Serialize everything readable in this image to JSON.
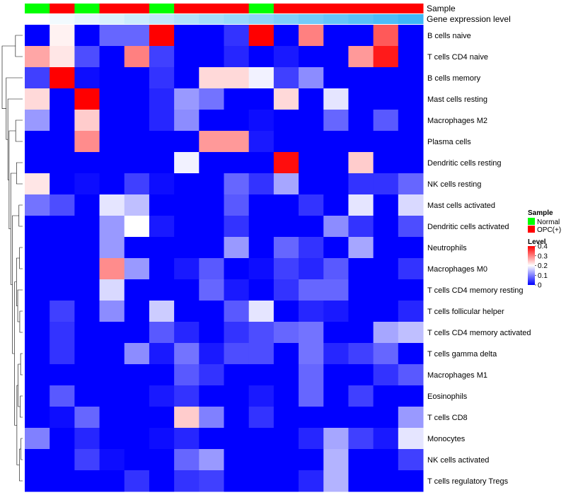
{
  "chart_data": {
    "type": "heatmap",
    "title": "",
    "annotation_labels": {
      "sample": "Sample",
      "expression": "Gene expression level"
    },
    "samples": [
      "Normal",
      "OPC(+)",
      "Normal",
      "OPC(+)",
      "OPC(+)",
      "Normal",
      "OPC(+)",
      "OPC(+)",
      "OPC(+)",
      "Normal",
      "OPC(+)",
      "OPC(+)",
      "OPC(+)",
      "OPC(+)",
      "OPC(+)",
      "OPC(+)"
    ],
    "expression_gradient": [
      0.02,
      0.04,
      0.06,
      0.08,
      0.1,
      0.12,
      0.14,
      0.16,
      0.18,
      0.2,
      0.22,
      0.24,
      0.26,
      0.28,
      0.3,
      0.32
    ],
    "rows": [
      "B cells naive",
      "T cells CD4 naive",
      "B cells memory",
      "Mast cells resting",
      "Macrophages M2",
      "Plasma cells",
      "Dendritic cells resting",
      "NK cells resting",
      "Mast cells activated",
      "Dendritic cells activated",
      "Neutrophils",
      "Macrophages M0",
      "T cells CD4 memory resting",
      "T cells follicular helper",
      "T cells CD4 memory activated",
      "T cells gamma delta",
      "Macrophages M1",
      "Eosinophils",
      "T cells CD8",
      "Monocytes",
      "NK cells activated",
      "T cells regulatory  Tregs"
    ],
    "values": [
      [
        0.0,
        0.21,
        0.0,
        0.08,
        0.08,
        0.4,
        0.0,
        0.0,
        0.04,
        0.4,
        0.0,
        0.3,
        0.0,
        0.0,
        0.33,
        0.0
      ],
      [
        0.27,
        0.22,
        0.06,
        0.0,
        0.3,
        0.05,
        0.0,
        0.0,
        0.03,
        0.0,
        0.02,
        0.0,
        0.0,
        0.28,
        0.38,
        0.0
      ],
      [
        0.05,
        0.4,
        0.01,
        0.0,
        0.0,
        0.04,
        0.0,
        0.23,
        0.23,
        0.19,
        0.05,
        0.11,
        0.0,
        0.0,
        0.0,
        0.0
      ],
      [
        0.23,
        0.0,
        0.4,
        0.0,
        0.0,
        0.03,
        0.12,
        0.09,
        0.0,
        0.0,
        0.23,
        0.0,
        0.18,
        0.0,
        0.0,
        0.0
      ],
      [
        0.12,
        0.0,
        0.24,
        0.0,
        0.0,
        0.03,
        0.11,
        0.0,
        0.0,
        0.01,
        0.0,
        0.0,
        0.08,
        0.0,
        0.07,
        0.0
      ],
      [
        0.0,
        0.0,
        0.29,
        0.0,
        0.0,
        0.0,
        0.0,
        0.28,
        0.28,
        0.02,
        0.0,
        0.0,
        0.0,
        0.0,
        0.0,
        0.0
      ],
      [
        0.0,
        0.0,
        0.0,
        0.0,
        0.0,
        0.0,
        0.19,
        0.0,
        0.0,
        0.0,
        0.39,
        0.0,
        0.0,
        0.24,
        0.0,
        0.0
      ],
      [
        0.22,
        0.0,
        0.01,
        0.0,
        0.05,
        0.01,
        0.0,
        0.0,
        0.08,
        0.04,
        0.13,
        0.0,
        0.0,
        0.04,
        0.04,
        0.08
      ],
      [
        0.09,
        0.06,
        0.0,
        0.18,
        0.15,
        0.0,
        0.0,
        0.0,
        0.07,
        0.0,
        0.0,
        0.04,
        0.0,
        0.18,
        0.0,
        0.17
      ],
      [
        0.0,
        0.0,
        0.0,
        0.12,
        0.2,
        0.02,
        0.0,
        0.0,
        0.04,
        0.0,
        0.0,
        0.0,
        0.11,
        0.04,
        0.0,
        0.06
      ],
      [
        0.0,
        0.0,
        0.0,
        0.12,
        0.0,
        0.0,
        0.0,
        0.0,
        0.12,
        0.0,
        0.08,
        0.04,
        0.0,
        0.13,
        0.0,
        0.0
      ],
      [
        0.0,
        0.0,
        0.0,
        0.29,
        0.12,
        0.0,
        0.02,
        0.07,
        0.0,
        0.01,
        0.05,
        0.03,
        0.07,
        0.0,
        0.0,
        0.04
      ],
      [
        0.0,
        0.0,
        0.0,
        0.17,
        0.0,
        0.0,
        0.0,
        0.08,
        0.02,
        0.0,
        0.04,
        0.08,
        0.08,
        0.0,
        0.0,
        0.0
      ],
      [
        0.0,
        0.05,
        0.0,
        0.11,
        0.0,
        0.16,
        0.0,
        0.0,
        0.07,
        0.18,
        0.0,
        0.03,
        0.02,
        0.0,
        0.0,
        0.03
      ],
      [
        0.0,
        0.04,
        0.0,
        0.0,
        0.0,
        0.07,
        0.03,
        0.0,
        0.04,
        0.06,
        0.08,
        0.09,
        0.0,
        0.0,
        0.13,
        0.15
      ],
      [
        0.0,
        0.04,
        0.0,
        0.0,
        0.11,
        0.02,
        0.09,
        0.02,
        0.06,
        0.06,
        0.0,
        0.09,
        0.03,
        0.05,
        0.08,
        0.0
      ],
      [
        0.0,
        0.0,
        0.0,
        0.0,
        0.0,
        0.0,
        0.07,
        0.04,
        0.0,
        0.0,
        0.0,
        0.08,
        0.0,
        0.0,
        0.04,
        0.07
      ],
      [
        0.0,
        0.07,
        0.0,
        0.0,
        0.0,
        0.02,
        0.04,
        0.0,
        0.0,
        0.02,
        0.0,
        0.08,
        0.0,
        0.05,
        0.0,
        0.0
      ],
      [
        0.0,
        0.01,
        0.08,
        0.0,
        0.0,
        0.0,
        0.24,
        0.1,
        0.0,
        0.04,
        0.0,
        0.0,
        0.0,
        0.0,
        0.0,
        0.12
      ],
      [
        0.1,
        0.0,
        0.03,
        0.0,
        0.0,
        0.01,
        0.03,
        0.0,
        0.0,
        0.0,
        0.0,
        0.03,
        0.13,
        0.05,
        0.02,
        0.18
      ],
      [
        0.0,
        0.0,
        0.05,
        0.01,
        0.0,
        0.0,
        0.08,
        0.12,
        0.0,
        0.0,
        0.0,
        0.0,
        0.14,
        0.0,
        0.0,
        0.05
      ],
      [
        0.0,
        0.0,
        0.0,
        0.0,
        0.04,
        0.0,
        0.04,
        0.05,
        0.0,
        0.0,
        0.0,
        0.03,
        0.14,
        0.0,
        0.0,
        0.0
      ]
    ],
    "color_scale": {
      "min": 0,
      "max": 0.4,
      "low": "#0000ff",
      "mid": "#ffffff",
      "high": "#ff0000",
      "mid_value": 0.2
    },
    "sample_colors": {
      "Normal": "#00ff00",
      "OPC(+)": "#ff0000"
    },
    "expression_colors": {
      "low": "#ffffff",
      "high": "#3fb7f7"
    },
    "legend": {
      "sample_title": "Sample",
      "sample_entries": [
        "Normal",
        "OPC(+)"
      ],
      "level_title": "Level",
      "level_ticks": [
        "0.4",
        "0.3",
        "0.2",
        "0.1",
        "0"
      ],
      "level_values": [
        0.4,
        0.3,
        0.2,
        0.1,
        0
      ],
      "placement": "right"
    }
  }
}
